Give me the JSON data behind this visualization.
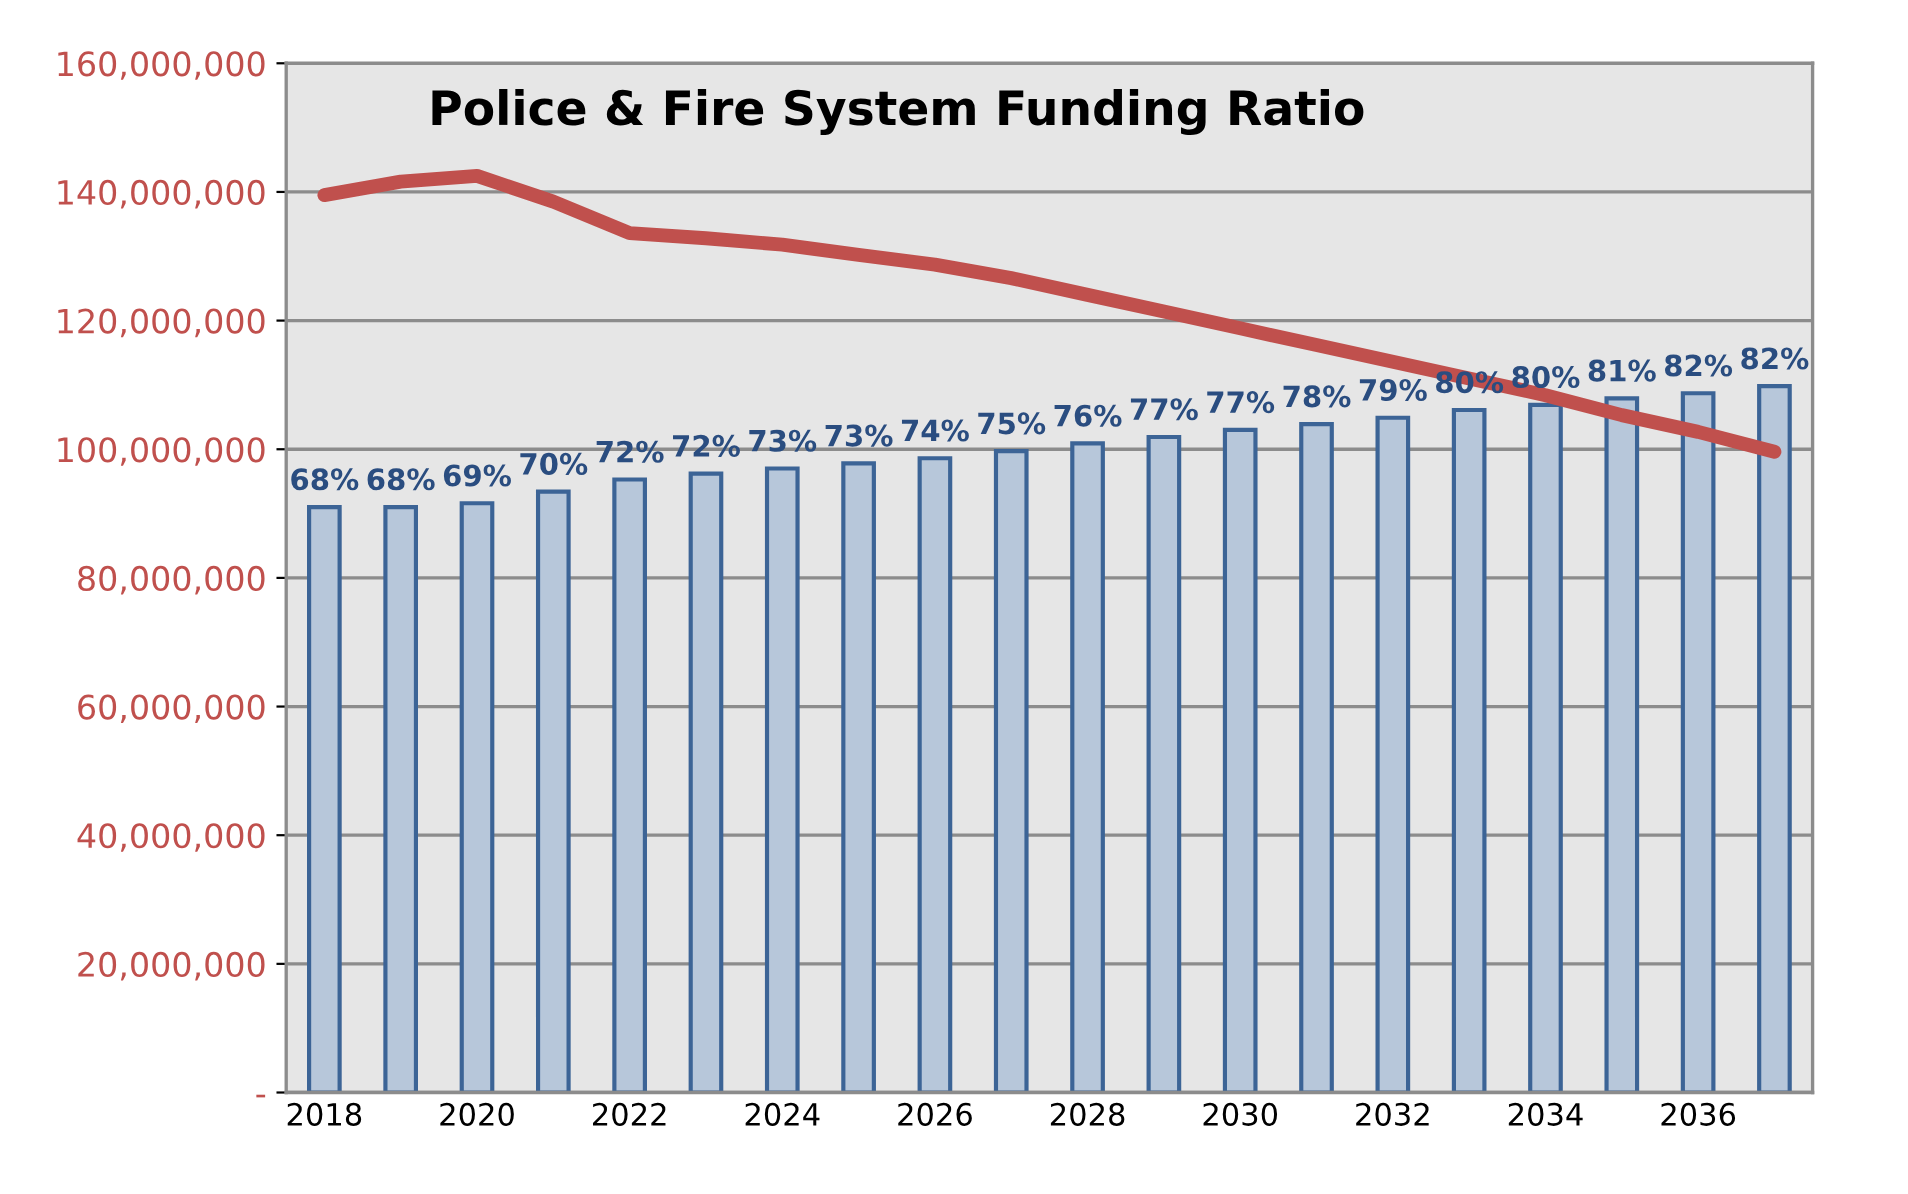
{
  "chart_data": {
    "type": "bar",
    "title": "Police & Fire System Funding Ratio",
    "categories": [
      "2018",
      null,
      "2020",
      null,
      "2022",
      null,
      "2024",
      null,
      "2026",
      null,
      "2028",
      null,
      "2030",
      null,
      "2032",
      null,
      "2034",
      null,
      "2036",
      null
    ],
    "series": [
      {
        "color": "#b7c7da",
        "values": [
          91000000.0,
          91000000.0,
          91600000.0,
          93400000.0,
          95300000.0,
          96200000.0,
          97000000.0,
          97800000.0,
          98600000.0,
          99700000.0,
          100900000.0,
          101900000.0,
          103000000.0,
          103900000.0,
          104900000.0,
          106100000.0,
          106900000.0,
          107900000.0,
          108700000.0,
          109800000.0
        ]
      },
      {
        "type": "line",
        "color": "#c0504d",
        "values": [
          139500000.0,
          141600000.0,
          142500000.0,
          138500000.0,
          133600000.0,
          132800000.0,
          131800000.0,
          130200000.0,
          128700000.0,
          126600000.0,
          124000000.0,
          121400000.0,
          118800000.0,
          116200000.0,
          113600000.0,
          111000000.0,
          108400000.0,
          105300000.0,
          102700000.0,
          99600000.0
        ]
      }
    ],
    "ylim": [
      0,
      160000000
    ],
    "yticks": [
      {
        "value": 0,
        "label": "-"
      },
      {
        "value": 20000000,
        "label": "20,000,000"
      },
      {
        "value": 40000000,
        "label": "40,000,000"
      },
      {
        "value": 60000000,
        "label": "60,000,000"
      },
      {
        "value": 80000000,
        "label": "80,000,000"
      },
      {
        "value": 100000000,
        "label": "100,000,000"
      },
      {
        "value": 120000000,
        "label": "120,000,000"
      },
      {
        "value": 140000000,
        "label": "140,000,000"
      },
      {
        "value": 160000000,
        "label": "160,000,000"
      }
    ],
    "annotations": [
      "68%",
      "68%",
      "69%",
      "70%",
      "72%",
      "72%",
      "73%",
      "73%",
      "74%",
      "75%",
      "76%",
      "77%",
      "77%",
      "78%",
      "79%",
      "80%",
      "80%",
      "81%",
      "82%",
      "82%"
    ],
    "grid": "y"
  }
}
